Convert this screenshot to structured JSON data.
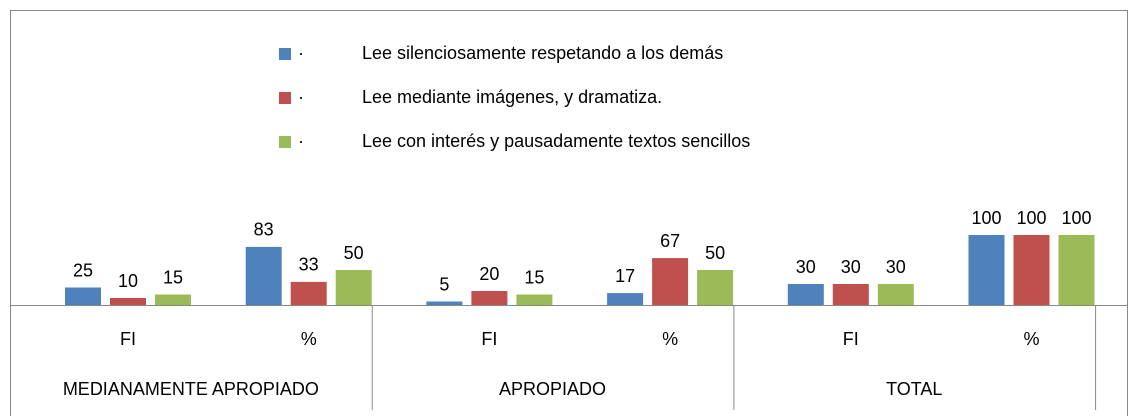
{
  "chart_data": {
    "type": "bar",
    "legend_bullet": "·",
    "categories": [
      "FI",
      "%",
      "FI",
      "%",
      "FI",
      "%"
    ],
    "groups": [
      "MEDIANAMENTE APROPIADO",
      "APROPIADO",
      "TOTAL"
    ],
    "series": [
      {
        "name": "Lee silenciosamente respetando a los demás",
        "color": "#4f81bd",
        "values": [
          25,
          83,
          5,
          17,
          30,
          100
        ]
      },
      {
        "name": "Lee mediante imágenes, y dramatiza.",
        "color": "#c0504d",
        "values": [
          10,
          33,
          20,
          67,
          30,
          100
        ]
      },
      {
        "name": "Lee con interés y pausadamente  textos sencillos",
        "color": "#9bbb59",
        "values": [
          15,
          50,
          15,
          50,
          30,
          100
        ]
      }
    ]
  }
}
